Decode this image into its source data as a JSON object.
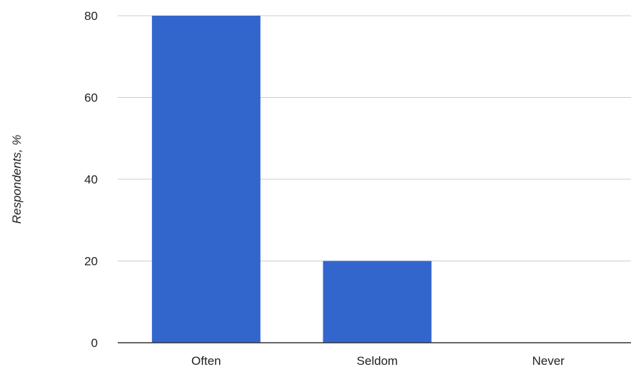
{
  "chart_data": {
    "type": "bar",
    "categories": [
      "Often",
      "Seldom",
      "Never"
    ],
    "values": [
      80,
      20,
      0
    ],
    "title": "",
    "xlabel": "",
    "ylabel": "Respondents, %",
    "ylim": [
      0,
      80
    ],
    "yticks": [
      0,
      20,
      40,
      60,
      80
    ],
    "grid": true,
    "legend": "none",
    "bar_color": "#3366cc",
    "grid_color": "#cccccc",
    "axis_color": "#333333",
    "text_color": "#222222"
  }
}
